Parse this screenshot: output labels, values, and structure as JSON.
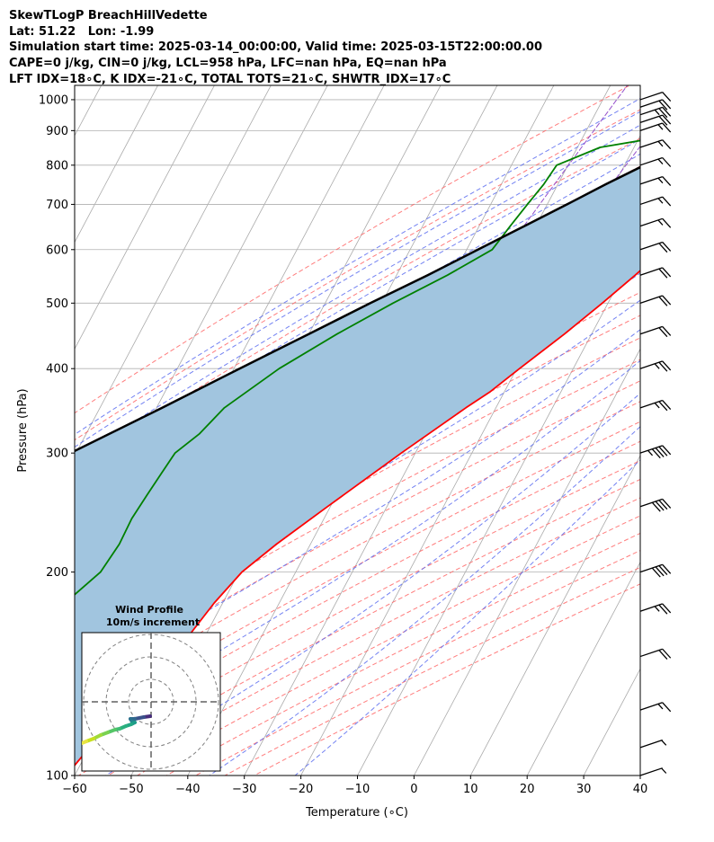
{
  "title_lines": [
    "SkewTLogP BreachHillVedette",
    "Lat: 51.22   Lon: -1.99",
    "Simulation start time: 2025-03-14_00:00:00, Valid time: 2025-03-15T22:00:00.00",
    "CAPE=0 j/kg, CIN=0 j/kg, LCL=958 hPa, LFC=nan hPa, EQ=nan hPa",
    "LFT IDX=18∘C, K IDX=-21∘C, TOTAL TOTS=21∘C, SHWTR_IDX=17∘C"
  ],
  "chart_data": {
    "type": "line",
    "subtype": "skew-t log-p",
    "xlabel": "Temperature (∘C)",
    "ylabel": "Pressure (hPa)",
    "xlim": [
      -60,
      40
    ],
    "ylim": [
      1050,
      100
    ],
    "yscale": "log",
    "x_ticks": [
      -60,
      -50,
      -40,
      -30,
      -20,
      -10,
      0,
      10,
      20,
      30,
      40
    ],
    "x_tick_labels": [
      "−60",
      "−50",
      "−40",
      "−30",
      "−20",
      "−10",
      "0",
      "10",
      "20",
      "30",
      "40"
    ],
    "y_ticks": [
      1000,
      900,
      800,
      700,
      600,
      500,
      400,
      300,
      200,
      100
    ],
    "y_tick_labels": [
      "1000",
      "900",
      "800",
      "700",
      "600",
      "500",
      "400",
      "300",
      "200",
      "100"
    ],
    "grid": true,
    "colors": {
      "temperature": "#ff0000",
      "dewpoint": "#008000",
      "parcel": "#000000",
      "shade": "#a1c5df",
      "dry_adiabats": "#ff6666",
      "moist_adiabats": "#5a6cf0",
      "mixing_ratio": "#8b3fc6",
      "isotherms": "#aaaaaa",
      "grid": "#b0b0b0"
    },
    "series": [
      {
        "key": "temperature",
        "p": [
          1013,
          1000,
          990,
          975,
          950,
          925,
          900,
          850,
          800,
          750,
          700,
          650,
          600,
          550,
          500,
          450,
          400,
          370,
          350,
          300,
          250,
          220,
          200,
          180,
          160,
          150,
          140,
          130,
          120,
          110,
          100
        ],
        "t": [
          2.5,
          3.8,
          3.5,
          2.6,
          1.7,
          1.0,
          0.6,
          0.3,
          0.0,
          -0.8,
          -2.0,
          -3.4,
          -5.1,
          -7.8,
          -11.0,
          -14.8,
          -19.5,
          -22.5,
          -25.3,
          -32.5,
          -40.5,
          -46.0,
          -49.5,
          -51.5,
          -53.0,
          -54.0,
          -55.0,
          -56.0,
          -58.0,
          -60.0,
          -61.5
        ]
      },
      {
        "key": "dewpoint",
        "p": [
          1013,
          1010,
          1000,
          990,
          975,
          950,
          925,
          900,
          850,
          800,
          750,
          700,
          650,
          600,
          550,
          500,
          450,
          400,
          350,
          320,
          300,
          280,
          260,
          240,
          220,
          200,
          185,
          170,
          160,
          150,
          140,
          130,
          120,
          110,
          100
        ],
        "t": [
          -2.5,
          -0.5,
          -0.3,
          -1.4,
          -0.8,
          0.0,
          -1.0,
          -10.0,
          -26.0,
          -32.0,
          -32.5,
          -33.5,
          -34.5,
          -35.5,
          -41.0,
          -48.0,
          -55.0,
          -62.0,
          -68.0,
          -70.0,
          -72.5,
          -73.0,
          -73.5,
          -74.0,
          -73.8,
          -74.5,
          -77.0,
          -79.0,
          -80.0,
          -81.5,
          -82.0,
          -83.5,
          -84.0,
          -85.0,
          -86.0
        ]
      },
      {
        "key": "parcel",
        "p": [
          1013,
          1000,
          958,
          900,
          850,
          800,
          750,
          700,
          650,
          600,
          550,
          500,
          450,
          400,
          350,
          300,
          250,
          200,
          150,
          100
        ],
        "t": [
          1.8,
          0.5,
          -3.0,
          -7.5,
          -12.0,
          -16.5,
          -21.5,
          -26.5,
          -32.0,
          -38.0,
          -44.5,
          -52.0,
          -60.0,
          -69.0,
          -79.0,
          -91.0,
          -106.0,
          -124.0,
          -148.0,
          -183.0
        ]
      }
    ],
    "wind_barbs": {
      "p": [
        1000,
        975,
        950,
        925,
        900,
        850,
        800,
        750,
        700,
        650,
        600,
        550,
        500,
        450,
        400,
        350,
        300,
        250,
        200,
        175,
        150,
        125,
        110,
        100
      ],
      "speed_kt": [
        10,
        20,
        25,
        20,
        15,
        15,
        15,
        15,
        15,
        15,
        20,
        20,
        20,
        20,
        25,
        25,
        45,
        40,
        40,
        25,
        20,
        15,
        5,
        5
      ]
    },
    "inset": {
      "title_line1": "Wind Profile",
      "title_line2": "10m/s increment",
      "ring_count": 3
    }
  }
}
